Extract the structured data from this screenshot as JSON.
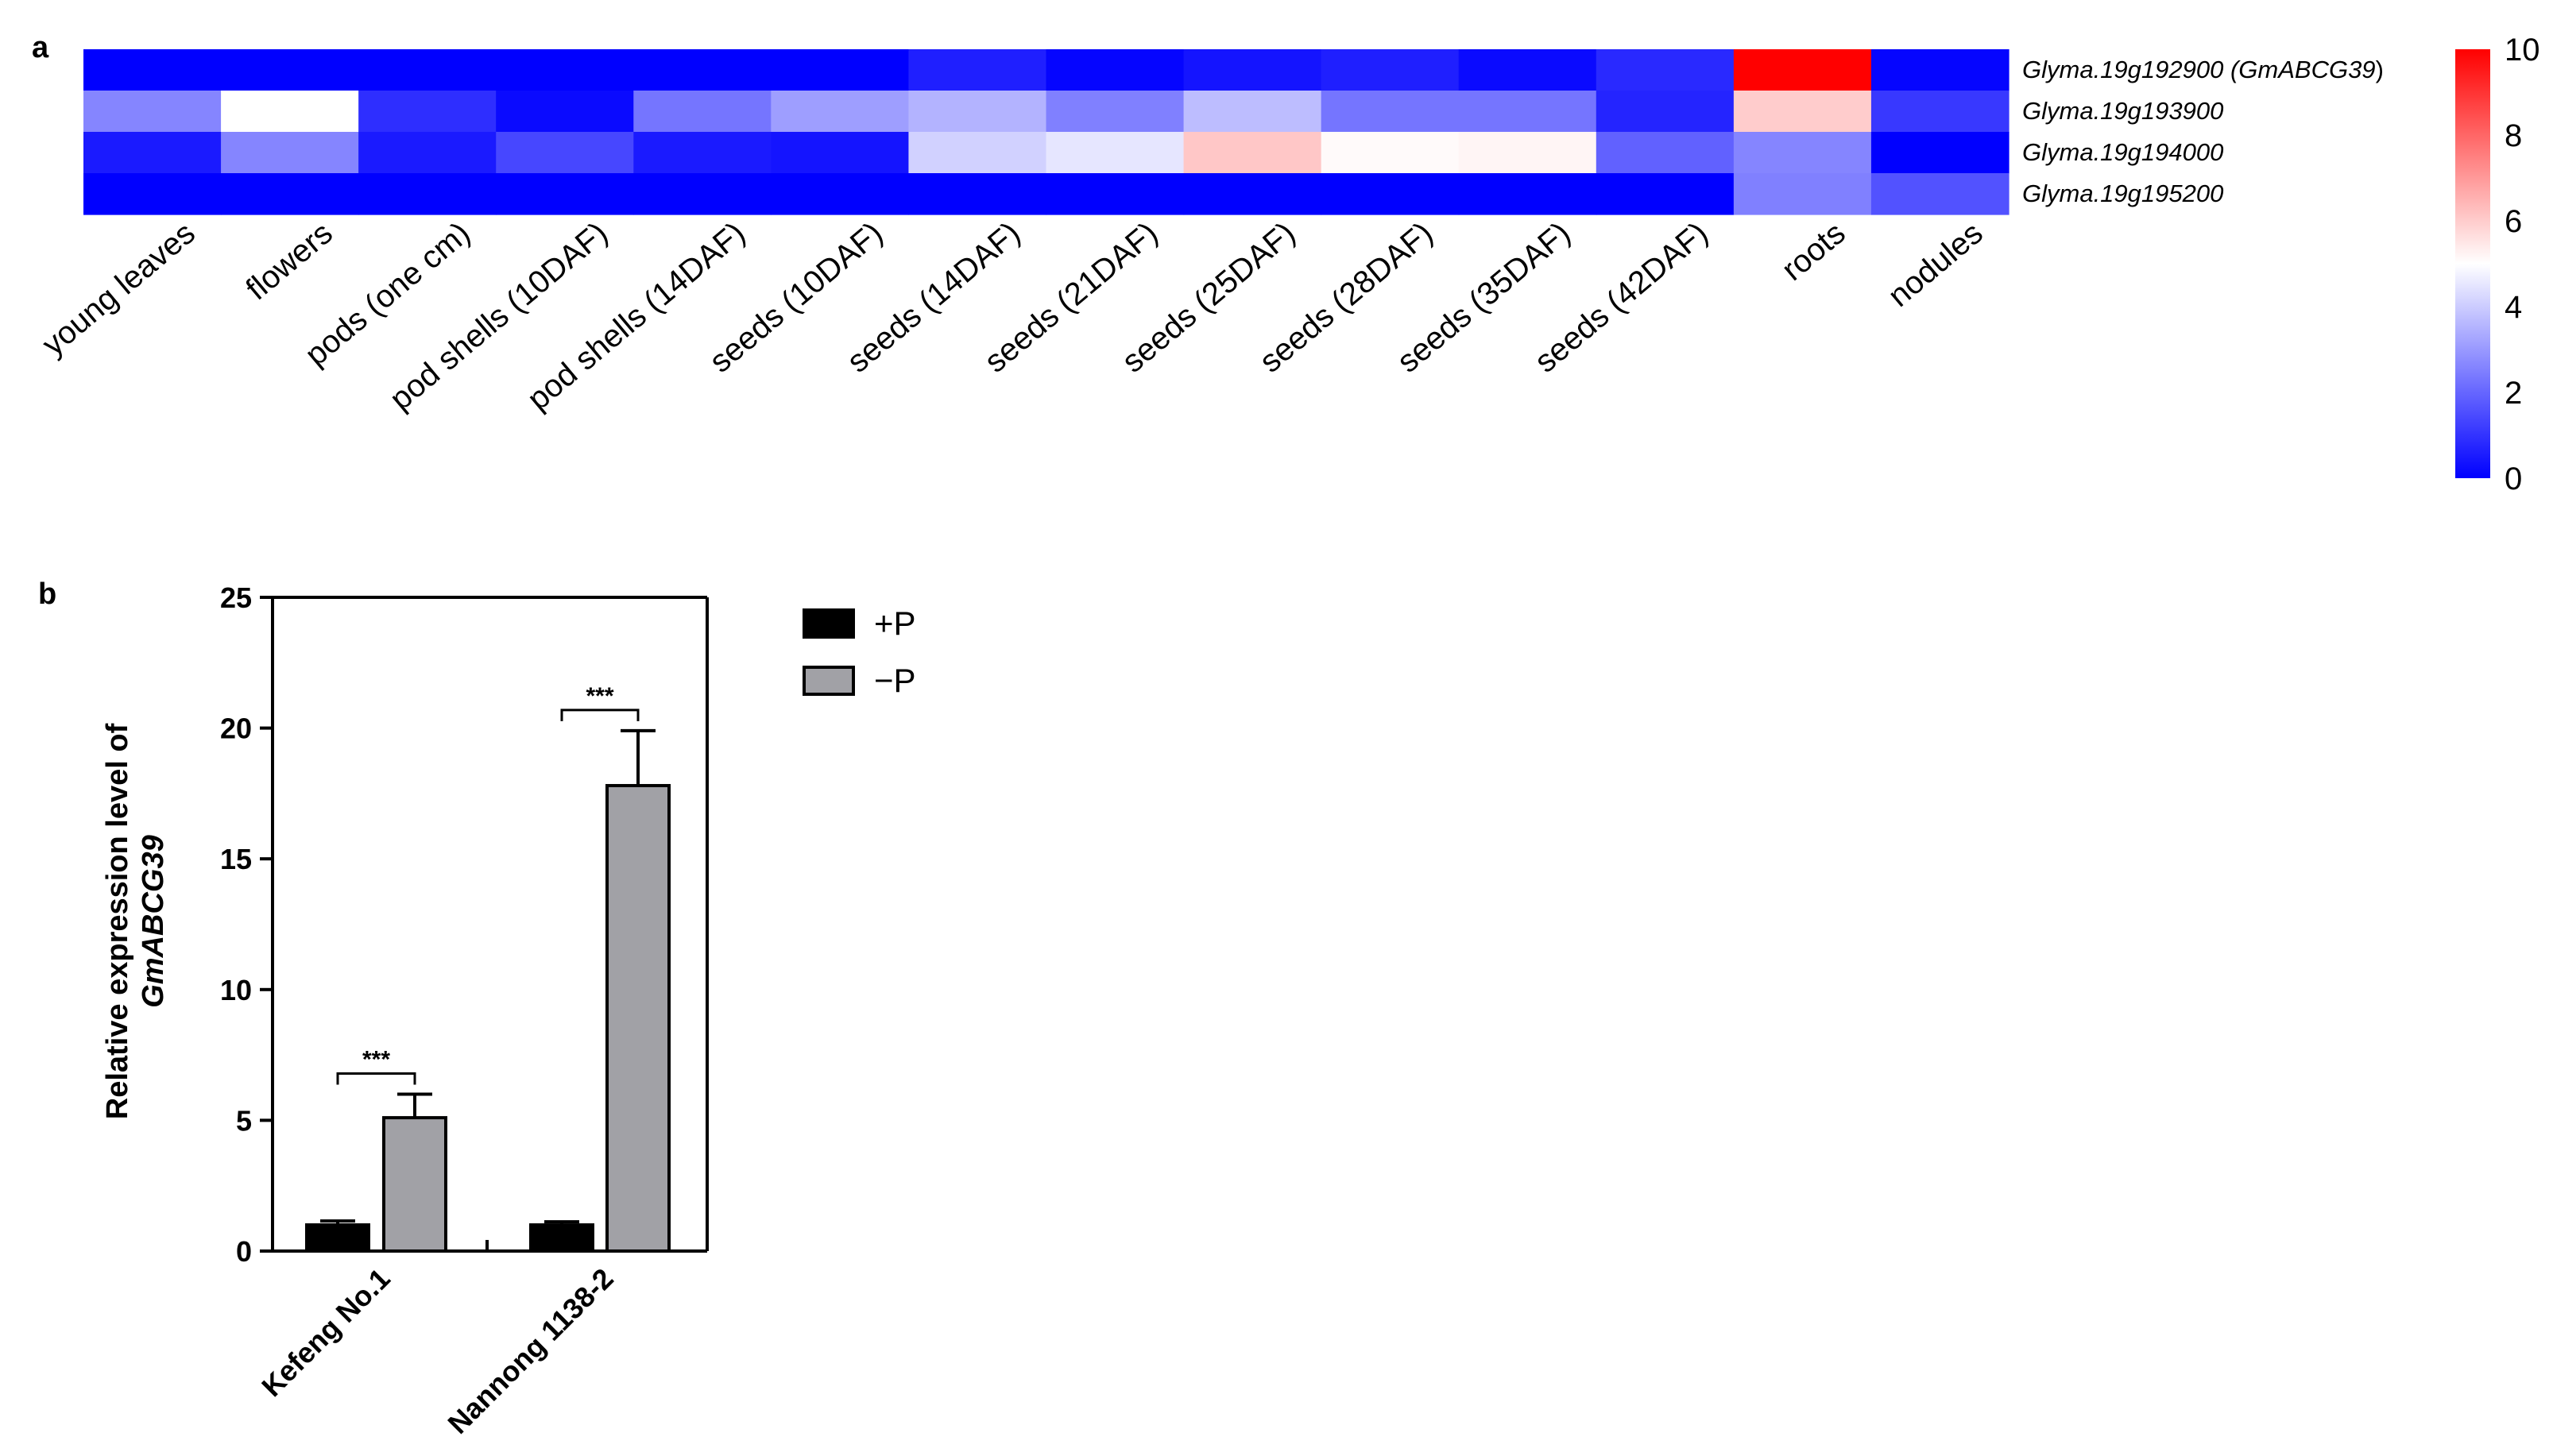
{
  "panel_labels": {
    "a": "a",
    "b": "b"
  },
  "chart_data": [
    {
      "type": "heatmap",
      "panel": "a",
      "rows": [
        {
          "prefix": "Glyma.19g192900 (",
          "emph": "GmABCG39",
          "suffix": ")"
        },
        {
          "prefix": "Glyma.19g193900",
          "emph": "",
          "suffix": ""
        },
        {
          "prefix": "Glyma.19g194000",
          "emph": "",
          "suffix": ""
        },
        {
          "prefix": "Glyma.19g195200",
          "emph": "",
          "suffix": ""
        }
      ],
      "columns": [
        "young leaves",
        "flowers",
        "pods (one cm)",
        "pod shells (10DAF)",
        "pod shells (14DAF)",
        "seeds (10DAF)",
        "seeds (14DAF)",
        "seeds (21DAF)",
        "seeds (25DAF)",
        "seeds (28DAF)",
        "seeds (35DAF)",
        "seeds (42DAF)",
        "roots",
        "nodules"
      ],
      "values": [
        [
          0.0,
          0.0,
          0.0,
          0.0,
          0.0,
          0.0,
          0.6,
          0.1,
          0.4,
          0.6,
          0.2,
          0.8,
          10.0,
          0.1
        ],
        [
          2.6,
          5.0,
          0.9,
          0.2,
          2.3,
          3.1,
          3.5,
          2.5,
          3.7,
          2.3,
          2.3,
          0.7,
          6.0,
          1.1
        ],
        [
          0.5,
          2.6,
          0.5,
          1.4,
          0.5,
          0.4,
          4.1,
          4.5,
          6.1,
          5.1,
          5.2,
          1.9,
          2.6,
          0.0
        ],
        [
          0.0,
          0.0,
          0.0,
          0.0,
          0.0,
          0.0,
          0.0,
          0.0,
          0.0,
          0.0,
          0.0,
          0.0,
          2.5,
          1.6
        ]
      ],
      "colorbar": {
        "min": 0,
        "max": 10,
        "ticks": [
          0,
          2,
          4,
          6,
          8,
          10
        ],
        "colors": [
          "#0000ff",
          "#ffffff",
          "#ff0000"
        ]
      }
    },
    {
      "type": "bar",
      "panel": "b",
      "categories": [
        "Kefeng No.1",
        "Nannong 1138-2"
      ],
      "series": [
        {
          "name": "+P",
          "values": [
            1.0,
            1.0
          ],
          "errors": [
            0.15,
            0.12
          ],
          "color": "#000000"
        },
        {
          "name": "−P",
          "values": [
            5.1,
            17.8
          ],
          "errors": [
            0.9,
            2.1
          ],
          "color": "#a1a1a6"
        }
      ],
      "ylabel_line1": "Relative expression level of",
      "ylabel_line2": "GmABCG39",
      "ylim": [
        0,
        25
      ],
      "yticks": [
        0,
        5,
        10,
        15,
        20,
        25
      ],
      "significance": [
        "***",
        "***"
      ],
      "legend_position": "top-right of plot"
    }
  ]
}
